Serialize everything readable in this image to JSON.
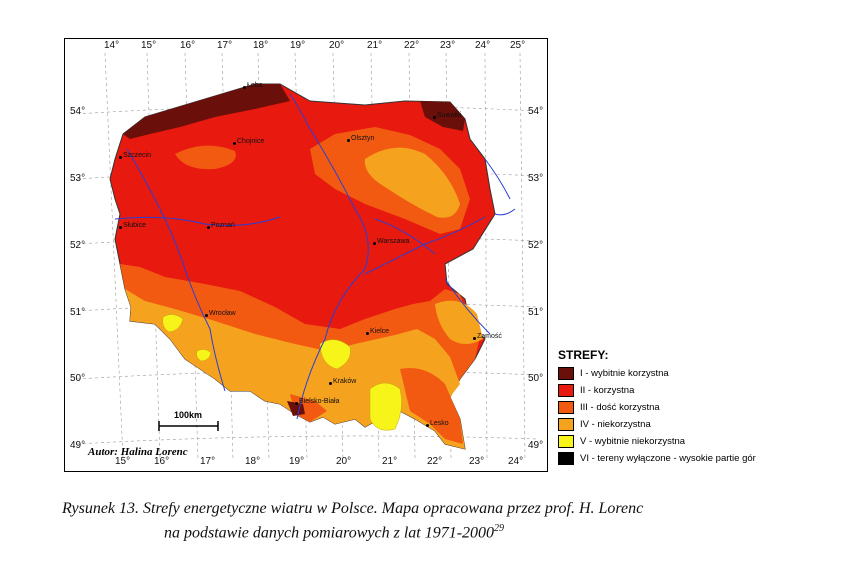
{
  "map": {
    "top_lon_ticks": [
      "14°",
      "15°",
      "16°",
      "17°",
      "18°",
      "19°",
      "20°",
      "21°",
      "22°",
      "23°",
      "24°",
      "25°"
    ],
    "bottom_lon_ticks": [
      "15°",
      "16°",
      "17°",
      "18°",
      "19°",
      "20°",
      "21°",
      "22°",
      "23°",
      "24°"
    ],
    "left_lat_ticks": [
      "54°",
      "53°",
      "52°",
      "51°",
      "50°",
      "49°"
    ],
    "right_lat_ticks": [
      "54°",
      "53°",
      "52°",
      "51°",
      "50°",
      "49°"
    ],
    "cities": [
      {
        "name": "Łeba"
      },
      {
        "name": "Suwałki"
      },
      {
        "name": "Szczecin"
      },
      {
        "name": "Chojnice"
      },
      {
        "name": "Olsztyn"
      },
      {
        "name": "Słubice"
      },
      {
        "name": "Poznań"
      },
      {
        "name": "Warszawa"
      },
      {
        "name": "Wrocław"
      },
      {
        "name": "Kielce"
      },
      {
        "name": "Zamość"
      },
      {
        "name": "Kraków"
      },
      {
        "name": "Bielsko-Biała"
      },
      {
        "name": "Lesko"
      }
    ],
    "scale_bar_label": "100km",
    "author": "Autor: Halina Lorenc",
    "zone_colors": {
      "I": "#6b0f0a",
      "II": "#e8190f",
      "III": "#f25a12",
      "IV": "#f5a21e",
      "V": "#f6f418",
      "VI": "#000000"
    }
  },
  "legend": {
    "title": "STREFY:",
    "items": [
      {
        "label": "I - wybitnie korzystna",
        "color": "#6b0f0a"
      },
      {
        "label": "II - korzystna",
        "color": "#e8190f"
      },
      {
        "label": "III - dość korzystna",
        "color": "#f25a12"
      },
      {
        "label": "IV - niekorzystna",
        "color": "#f5a21e"
      },
      {
        "label": "V - wybitnie niekorzystna",
        "color": "#f6f418"
      },
      {
        "label": "VI - tereny wyłączone - wysokie partie gór",
        "color": "#000000"
      }
    ]
  },
  "caption": {
    "line1": "Rysunek 13. Strefy energetyczne wiatru w Polsce. Mapa opracowana przez prof. H. Lorenc",
    "line2": "na podstawie danych pomiarowych z lat 1971-2000",
    "footnote": "29"
  }
}
